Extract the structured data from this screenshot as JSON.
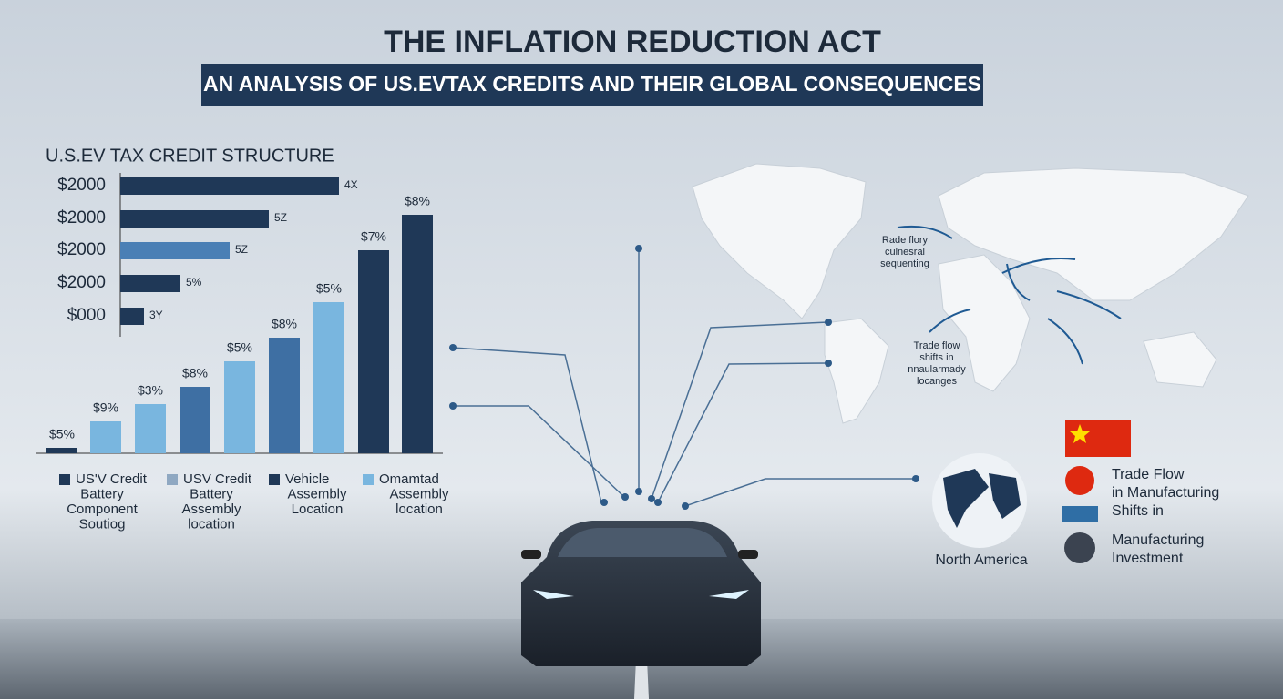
{
  "header": {
    "title": "THE INFLATION REDUCTION ACT",
    "subtitle": "AN ANALYSIS OF US.EVTAX CREDITS AND THEIR GLOBAL CONSEQUENCES"
  },
  "credit_structure": {
    "title": "U.S.EV TAX CREDIT STRUCTURE",
    "rows": [
      {
        "label": "$2000",
        "value_label": "4X"
      },
      {
        "label": "$2000",
        "value_label": "5Z"
      },
      {
        "label": "$2000",
        "value_label": "5Z"
      },
      {
        "label": "$2000",
        "value_label": "5%"
      },
      {
        "label": "$000",
        "value_label": "3Y"
      }
    ]
  },
  "column_labels": [
    "$5%",
    "$9%",
    "$3%",
    "$8%",
    "$5%",
    "$8%",
    "$5%",
    "$7%",
    "$8%"
  ],
  "legend": [
    [
      "US'V Credit",
      "Battery",
      "Component",
      "Soutiog"
    ],
    [
      "USV Credit",
      "Battery",
      "Assembly",
      "location"
    ],
    [
      "Vehicle",
      "Assembly",
      "Location"
    ],
    [
      "Omamtad",
      "Assembly",
      "location"
    ]
  ],
  "map": {
    "annotations": [
      [
        "Rade flory",
        "culnesral",
        "sequenting"
      ],
      [
        "Trade flow",
        "shifts in",
        "nnaularmady",
        "locanges"
      ]
    ]
  },
  "region": "North America",
  "key": [
    [
      "Trade Flow",
      "in Manufacturing",
      "Shifts in"
    ],
    [
      "Manufacturing",
      "Investment"
    ]
  ]
}
